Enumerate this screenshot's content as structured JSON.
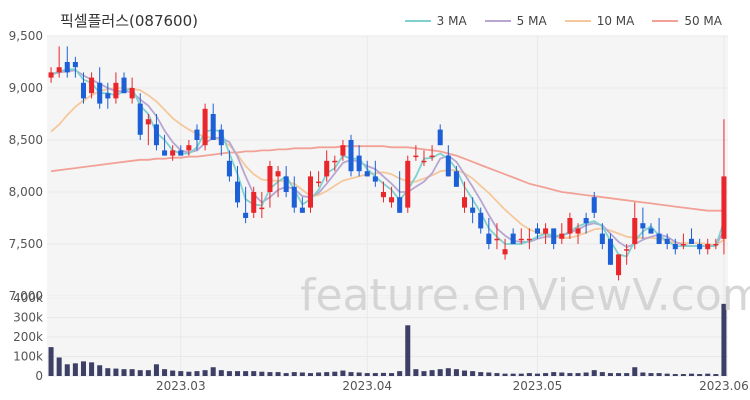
{
  "title": "픽셀플러스(087600)",
  "watermark": "feature.enViewV.com",
  "legend": [
    {
      "label": "3 MA",
      "color": "#7fd1cf"
    },
    {
      "label": "5 MA",
      "color": "#b7a6d2"
    },
    {
      "label": "10 MA",
      "color": "#f5c89b"
    },
    {
      "label": "50 MA",
      "color": "#f2a196"
    }
  ],
  "colors": {
    "up": "#e8262b",
    "down": "#1c5fd6",
    "volume": "#3d3f66",
    "grid": "#e9e9e9",
    "bg": "#f5f5f5"
  },
  "chart_data": {
    "type": "candlestick",
    "price_axis": {
      "ticks": [
        7000,
        7500,
        8000,
        8500,
        9000,
        9500
      ],
      "tick_labels": [
        "7,000",
        "7,500",
        "8,000",
        "8,500",
        "9,000",
        "9,500"
      ],
      "ylim": [
        7000,
        9500
      ]
    },
    "volume_axis": {
      "ticks": [
        0,
        100000,
        200000,
        300000,
        400000
      ],
      "tick_labels": [
        "0",
        "100k",
        "200k",
        "300k",
        "400k"
      ],
      "ylim": [
        0,
        400000
      ]
    },
    "x_tick_labels": [
      {
        "index": 16,
        "label": "2023.03"
      },
      {
        "index": 39,
        "label": "2023.04"
      },
      {
        "index": 60,
        "label": "2023.05"
      },
      {
        "index": 83,
        "label": "2023.06"
      }
    ],
    "ohlc": [
      [
        9100,
        9200,
        9050,
        9150
      ],
      [
        9150,
        9400,
        9100,
        9200
      ],
      [
        9250,
        9400,
        9100,
        9150
      ],
      [
        9250,
        9300,
        9100,
        9200
      ],
      [
        9050,
        9150,
        8850,
        8900
      ],
      [
        8950,
        9150,
        8900,
        9100
      ],
      [
        9050,
        9200,
        8800,
        8850
      ],
      [
        8950,
        9050,
        8800,
        8900
      ],
      [
        8900,
        9150,
        8850,
        9050
      ],
      [
        9100,
        9150,
        8950,
        8950
      ],
      [
        8900,
        9100,
        8850,
        9000
      ],
      [
        8850,
        8950,
        8500,
        8550
      ],
      [
        8650,
        8750,
        8450,
        8700
      ],
      [
        8650,
        8750,
        8400,
        8450
      ],
      [
        8400,
        8550,
        8350,
        8350
      ],
      [
        8350,
        8450,
        8300,
        8400
      ],
      [
        8400,
        8450,
        8350,
        8350
      ],
      [
        8400,
        8500,
        8350,
        8450
      ],
      [
        8600,
        8650,
        8400,
        8500
      ],
      [
        8450,
        8850,
        8400,
        8800
      ],
      [
        8750,
        8850,
        8500,
        8500
      ],
      [
        8600,
        8650,
        8350,
        8450
      ],
      [
        8300,
        8400,
        8100,
        8150
      ],
      [
        8100,
        8250,
        7850,
        7900
      ],
      [
        7800,
        8050,
        7700,
        7750
      ],
      [
        7800,
        8050,
        7750,
        8000
      ],
      [
        7850,
        8000,
        7750,
        7850
      ],
      [
        8000,
        8300,
        7850,
        8250
      ],
      [
        8150,
        8250,
        7950,
        8200
      ],
      [
        8150,
        8250,
        7950,
        8000
      ],
      [
        8050,
        8150,
        7800,
        7850
      ],
      [
        7850,
        7950,
        7800,
        7800
      ],
      [
        7850,
        8200,
        7800,
        8150
      ],
      [
        8100,
        8200,
        8050,
        8100
      ],
      [
        8150,
        8400,
        8100,
        8300
      ],
      [
        8300,
        8350,
        8200,
        8300
      ],
      [
        8350,
        8500,
        8300,
        8450
      ],
      [
        8500,
        8550,
        8150,
        8200
      ],
      [
        8350,
        8450,
        8150,
        8200
      ],
      [
        8200,
        8300,
        8150,
        8150
      ],
      [
        8150,
        8300,
        8050,
        8100
      ],
      [
        7950,
        8100,
        7900,
        8000
      ],
      [
        7900,
        8050,
        7850,
        7950
      ],
      [
        7950,
        8200,
        7800,
        7800
      ],
      [
        7850,
        8350,
        7800,
        8300
      ],
      [
        8350,
        8450,
        8300,
        8350
      ],
      [
        8300,
        8400,
        8250,
        8300
      ],
      [
        8350,
        8450,
        8300,
        8350
      ],
      [
        8600,
        8650,
        8450,
        8450
      ],
      [
        8350,
        8450,
        8150,
        8150
      ],
      [
        8200,
        8250,
        8050,
        8050
      ],
      [
        7850,
        8100,
        7800,
        7950
      ],
      [
        7850,
        7950,
        7700,
        7800
      ],
      [
        7800,
        7850,
        7600,
        7650
      ],
      [
        7600,
        7750,
        7450,
        7500
      ],
      [
        7550,
        7700,
        7450,
        7550
      ],
      [
        7400,
        7550,
        7350,
        7450
      ],
      [
        7600,
        7650,
        7500,
        7500
      ],
      [
        7550,
        7650,
        7500,
        7550
      ],
      [
        7550,
        7650,
        7450,
        7550
      ],
      [
        7650,
        7700,
        7550,
        7600
      ],
      [
        7600,
        7700,
        7500,
        7650
      ],
      [
        7650,
        7650,
        7450,
        7500
      ],
      [
        7550,
        7700,
        7500,
        7600
      ],
      [
        7600,
        7800,
        7550,
        7750
      ],
      [
        7600,
        7700,
        7500,
        7650
      ],
      [
        7750,
        7800,
        7600,
        7700
      ],
      [
        7950,
        8000,
        7750,
        7800
      ],
      [
        7600,
        7700,
        7450,
        7500
      ],
      [
        7550,
        7600,
        7300,
        7300
      ],
      [
        7200,
        7400,
        7150,
        7400
      ],
      [
        7450,
        7500,
        7300,
        7450
      ],
      [
        7500,
        7900,
        7450,
        7750
      ],
      [
        7700,
        7850,
        7550,
        7650
      ],
      [
        7650,
        7700,
        7600,
        7600
      ],
      [
        7600,
        7750,
        7500,
        7500
      ],
      [
        7550,
        7600,
        7450,
        7500
      ],
      [
        7500,
        7550,
        7400,
        7450
      ],
      [
        7500,
        7600,
        7450,
        7500
      ],
      [
        7550,
        7650,
        7500,
        7500
      ],
      [
        7500,
        7550,
        7400,
        7450
      ],
      [
        7450,
        7550,
        7400,
        7500
      ],
      [
        7500,
        7550,
        7450,
        7500
      ],
      [
        7550,
        8700,
        7400,
        8150
      ]
    ],
    "volume": [
      148000,
      95000,
      60000,
      65000,
      75000,
      70000,
      55000,
      40000,
      38000,
      35000,
      35000,
      30000,
      30000,
      60000,
      35000,
      28000,
      25000,
      22000,
      25000,
      30000,
      45000,
      30000,
      25000,
      25000,
      25000,
      25000,
      22000,
      20000,
      20000,
      15000,
      20000,
      18000,
      15000,
      18000,
      20000,
      22000,
      28000,
      20000,
      18000,
      15000,
      15000,
      16000,
      15000,
      25000,
      260000,
      35000,
      25000,
      30000,
      35000,
      40000,
      35000,
      28000,
      25000,
      20000,
      18000,
      15000,
      12000,
      12000,
      12000,
      15000,
      12000,
      15000,
      20000,
      18000,
      15000,
      15000,
      18000,
      30000,
      20000,
      15000,
      15000,
      15000,
      45000,
      18000,
      15000,
      15000,
      12000,
      10000,
      10000,
      12000,
      10000,
      12000,
      10000,
      370000
    ],
    "ma3": [
      9130,
      9160,
      9180,
      9180,
      9080,
      9050,
      8950,
      8950,
      8930,
      8970,
      9000,
      8830,
      8750,
      8570,
      8500,
      8400,
      8370,
      8370,
      8430,
      8580,
      8600,
      8580,
      8370,
      8170,
      7930,
      7880,
      7870,
      8030,
      8100,
      8150,
      8020,
      7880,
      7930,
      8020,
      8180,
      8230,
      8350,
      8320,
      8320,
      8220,
      8150,
      8080,
      8020,
      7920,
      8020,
      8150,
      8320,
      8330,
      8370,
      8320,
      8220,
      8050,
      7930,
      7800,
      7650,
      7570,
      7500,
      7500,
      7500,
      7530,
      7570,
      7600,
      7580,
      7580,
      7620,
      7670,
      7700,
      7720,
      7670,
      7530,
      7400,
      7380,
      7530,
      7620,
      7670,
      7580,
      7530,
      7480,
      7480,
      7480,
      7480,
      7480,
      7480,
      7720
    ],
    "ma5": [
      9130,
      9150,
      9160,
      9170,
      9120,
      9080,
      9040,
      9000,
      8970,
      8970,
      8960,
      8890,
      8830,
      8730,
      8590,
      8480,
      8400,
      8380,
      8400,
      8470,
      8520,
      8520,
      8480,
      8340,
      8150,
      7980,
      7900,
      7950,
      8020,
      8050,
      8030,
      7960,
      7950,
      7990,
      8080,
      8180,
      8280,
      8310,
      8290,
      8250,
      8220,
      8150,
      8080,
      8000,
      8000,
      8050,
      8100,
      8180,
      8320,
      8350,
      8290,
      8170,
      8050,
      7920,
      7780,
      7650,
      7580,
      7530,
      7520,
      7520,
      7550,
      7570,
      7570,
      7580,
      7610,
      7640,
      7680,
      7700,
      7680,
      7600,
      7520,
      7470,
      7500,
      7540,
      7570,
      7590,
      7570,
      7520,
      7490,
      7480,
      7480,
      7480,
      7480,
      7630
    ],
    "ma10": [
      8580,
      8650,
      8740,
      8820,
      8880,
      8930,
      8970,
      8990,
      9000,
      9000,
      8990,
      8980,
      8930,
      8870,
      8790,
      8710,
      8650,
      8600,
      8560,
      8530,
      8520,
      8500,
      8450,
      8360,
      8250,
      8170,
      8120,
      8110,
      8110,
      8100,
      8080,
      8020,
      7960,
      7970,
      8010,
      8060,
      8110,
      8130,
      8150,
      8170,
      8180,
      8190,
      8170,
      8130,
      8100,
      8100,
      8130,
      8160,
      8200,
      8210,
      8210,
      8180,
      8130,
      8060,
      7990,
      7910,
      7830,
      7760,
      7690,
      7640,
      7610,
      7590,
      7570,
      7560,
      7560,
      7580,
      7610,
      7640,
      7650,
      7630,
      7600,
      7570,
      7560,
      7560,
      7560,
      7550,
      7530,
      7510,
      7510,
      7510,
      7510,
      7500,
      7490,
      7540
    ],
    "ma50": [
      8200,
      8210,
      8220,
      8230,
      8240,
      8250,
      8260,
      8270,
      8280,
      8290,
      8300,
      8310,
      8310,
      8320,
      8320,
      8330,
      8330,
      8340,
      8340,
      8350,
      8360,
      8370,
      8380,
      8380,
      8390,
      8390,
      8400,
      8400,
      8410,
      8410,
      8420,
      8420,
      8420,
      8430,
      8430,
      8430,
      8440,
      8440,
      8440,
      8440,
      8440,
      8440,
      8430,
      8430,
      8430,
      8420,
      8410,
      8400,
      8390,
      8370,
      8350,
      8320,
      8290,
      8260,
      8230,
      8200,
      8170,
      8140,
      8110,
      8080,
      8060,
      8040,
      8020,
      8000,
      7990,
      7980,
      7970,
      7960,
      7950,
      7940,
      7930,
      7920,
      7910,
      7900,
      7890,
      7880,
      7870,
      7860,
      7850,
      7840,
      7830,
      7820,
      7820,
      7820
    ]
  }
}
